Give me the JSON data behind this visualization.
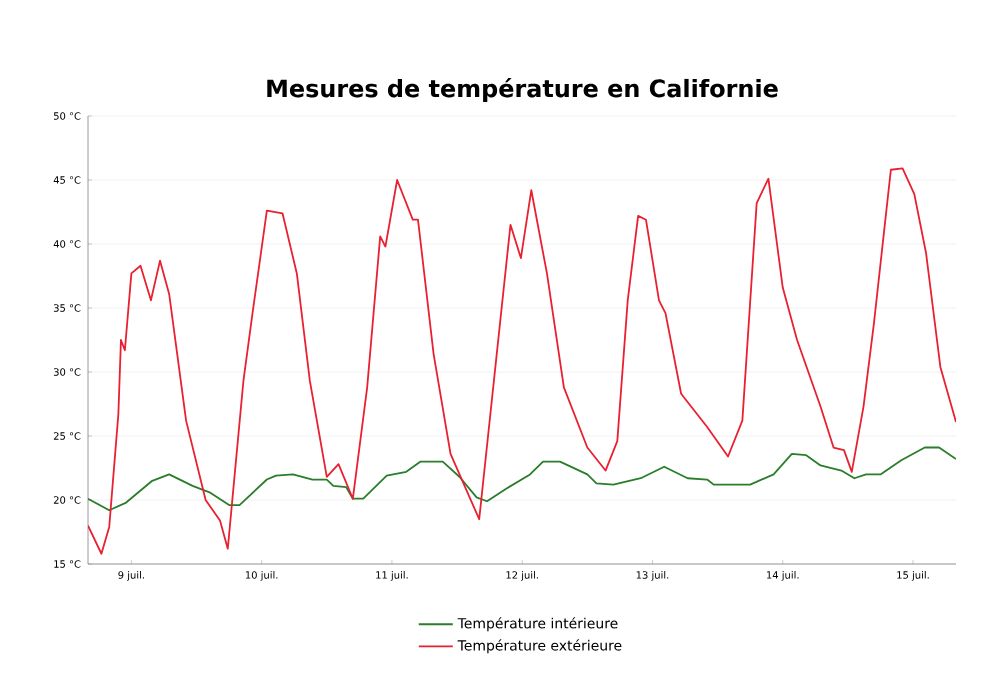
{
  "chart_data": {
    "type": "line",
    "title": "Mesures de température en Californie",
    "xlim": [
      8.667,
      15.33
    ],
    "ylim": [
      15,
      50
    ],
    "xticks": [
      {
        "value": 9,
        "label": "9 juil."
      },
      {
        "value": 10,
        "label": "10 juil."
      },
      {
        "value": 11,
        "label": "11 juil."
      },
      {
        "value": 12,
        "label": "12 juil."
      },
      {
        "value": 13,
        "label": "13 juil."
      },
      {
        "value": 14,
        "label": "14 juil."
      },
      {
        "value": 15,
        "label": "15 juil."
      }
    ],
    "yticks": [
      {
        "value": 15,
        "label": "15 °C"
      },
      {
        "value": 20,
        "label": "20 °C"
      },
      {
        "value": 25,
        "label": "25 °C"
      },
      {
        "value": 30,
        "label": "30 °C"
      },
      {
        "value": 35,
        "label": "35 °C"
      },
      {
        "value": 40,
        "label": "40 °C"
      },
      {
        "value": 45,
        "label": "45 °C"
      },
      {
        "value": 50,
        "label": "50 °C"
      }
    ],
    "grid": "y",
    "legend": "bottom",
    "line_style": "solid",
    "marker": "none",
    "series": [
      {
        "name": "Température intérieure",
        "color": "#2a7d2a",
        "x": [
          8.667,
          8.83,
          8.96,
          9.16,
          9.29,
          9.47,
          9.6,
          9.75,
          9.83,
          10.04,
          10.11,
          10.24,
          10.39,
          10.5,
          10.55,
          10.65,
          10.7,
          10.78,
          10.96,
          11.11,
          11.22,
          11.39,
          11.52,
          11.65,
          11.73,
          11.88,
          12.06,
          12.16,
          12.29,
          12.5,
          12.57,
          12.7,
          12.91,
          13.09,
          13.27,
          13.42,
          13.47,
          13.75,
          13.93,
          14.07,
          14.18,
          14.29,
          14.45,
          14.55,
          14.64,
          14.75,
          14.91,
          15.09,
          15.2,
          15.33
        ],
        "values": [
          20.1,
          19.2,
          19.8,
          21.5,
          22.0,
          21.1,
          20.6,
          19.6,
          19.6,
          21.6,
          21.9,
          22.0,
          21.6,
          21.6,
          21.1,
          21.0,
          20.1,
          20.1,
          21.9,
          22.2,
          23.0,
          23.0,
          21.8,
          20.2,
          19.9,
          20.9,
          22.0,
          23.0,
          23.0,
          22.0,
          21.3,
          21.2,
          21.7,
          22.6,
          21.7,
          21.6,
          21.2,
          21.2,
          22.0,
          23.6,
          23.5,
          22.7,
          22.3,
          21.7,
          22.0,
          22.0,
          23.1,
          24.1,
          24.1,
          23.2
        ]
      },
      {
        "name": "Température extérieure",
        "color": "#e8202f",
        "x": [
          8.667,
          8.77,
          8.83,
          8.9,
          8.92,
          8.95,
          9.0,
          9.07,
          9.15,
          9.22,
          9.29,
          9.42,
          9.57,
          9.68,
          9.74,
          9.86,
          9.93,
          10.04,
          10.16,
          10.27,
          10.37,
          10.5,
          10.59,
          10.7,
          10.81,
          10.91,
          10.95,
          11.04,
          11.16,
          11.2,
          11.32,
          11.45,
          11.67,
          11.91,
          11.99,
          12.07,
          12.19,
          12.32,
          12.5,
          12.64,
          12.73,
          12.81,
          12.89,
          12.95,
          13.05,
          13.1,
          13.22,
          13.42,
          13.58,
          13.69,
          13.8,
          13.89,
          14.0,
          14.11,
          14.29,
          14.39,
          14.47,
          14.53,
          14.62,
          14.7,
          14.83,
          14.92,
          15.01,
          15.1,
          15.21,
          15.33
        ],
        "values": [
          18.0,
          15.8,
          17.9,
          26.7,
          32.5,
          31.7,
          37.7,
          38.3,
          35.6,
          38.7,
          36.1,
          26.2,
          20.0,
          18.4,
          16.2,
          29.3,
          34.6,
          42.6,
          42.4,
          37.7,
          29.3,
          21.8,
          22.8,
          20.1,
          28.8,
          40.6,
          39.8,
          45.0,
          41.9,
          41.9,
          31.4,
          23.6,
          18.5,
          41.5,
          38.9,
          44.2,
          37.7,
          28.8,
          24.1,
          22.3,
          24.6,
          35.6,
          42.2,
          41.9,
          35.6,
          34.6,
          28.3,
          25.7,
          23.4,
          26.2,
          43.2,
          45.1,
          36.6,
          32.5,
          27.3,
          24.1,
          23.9,
          22.2,
          27.3,
          33.8,
          45.8,
          45.9,
          43.9,
          39.3,
          30.4,
          26.1
        ]
      }
    ]
  }
}
